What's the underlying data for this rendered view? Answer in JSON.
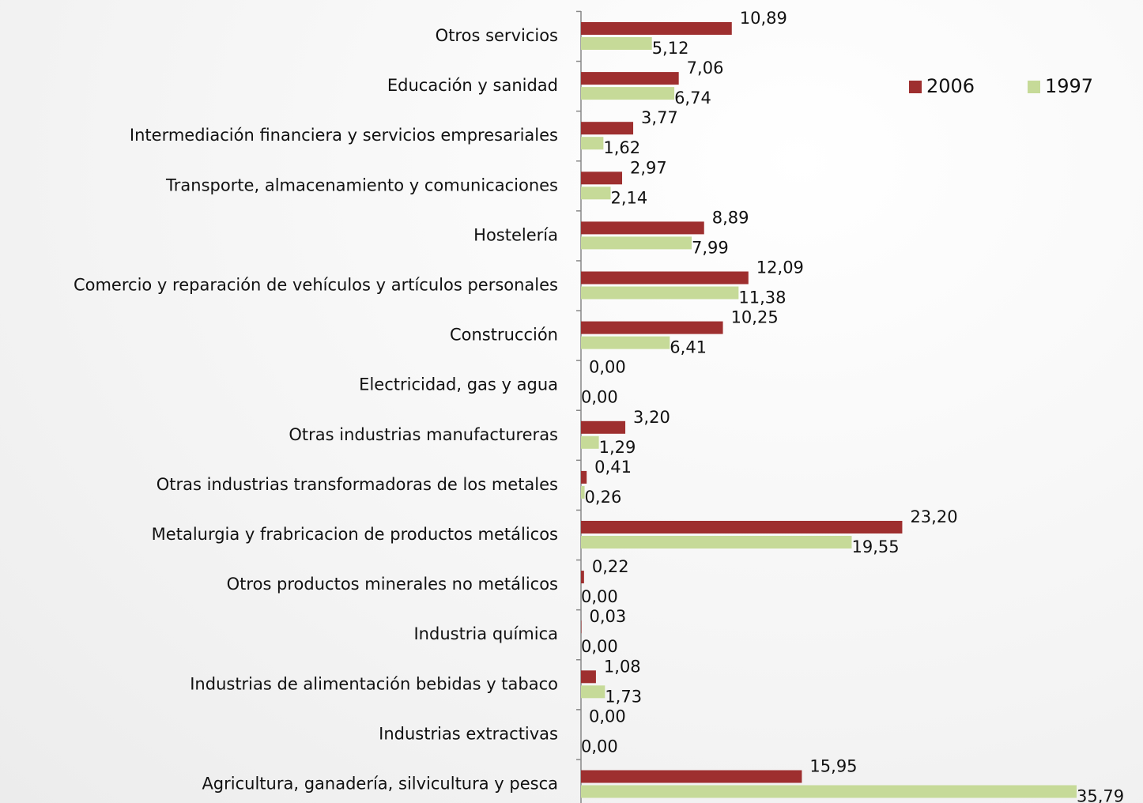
{
  "chart_data": {
    "type": "bar",
    "orientation": "horizontal",
    "categories": [
      "Otros servicios",
      "Educación y sanidad",
      "Intermediación financiera y servicios empresariales",
      "Transporte, almacenamiento y comunicaciones",
      "Hostelería",
      "Comercio y reparación de vehículos y artículos personales",
      "Construcción",
      "Electricidad, gas y agua",
      "Otras industrias manufactureras",
      "Otras industrias transformadoras de los metales",
      "Metalurgia y frabricacion de productos metálicos",
      "Otros productos minerales no metálicos",
      "Industria química",
      "Industrias de alimentación bebidas y tabaco",
      "Industrias extractivas",
      "Agricultura, ganadería, silvicultura y pesca"
    ],
    "series": [
      {
        "name": "2006",
        "color": "#9e2f2f",
        "values": [
          10.89,
          7.06,
          3.77,
          2.97,
          8.89,
          12.09,
          10.25,
          0.0,
          3.2,
          0.41,
          23.2,
          0.22,
          0.03,
          1.08,
          0.0,
          15.95
        ],
        "value_labels": [
          "10,89",
          "7,06",
          "3,77",
          "2,97",
          "8,89",
          "12,09",
          "10,25",
          "0,00",
          "3,20",
          "0,41",
          "23,20",
          "0,22",
          "0,03",
          "1,08",
          "0,00",
          "15,95"
        ]
      },
      {
        "name": "1997",
        "color": "#c6da98",
        "values": [
          5.12,
          6.74,
          1.62,
          2.14,
          7.99,
          11.38,
          6.41,
          0.0,
          1.29,
          0.26,
          19.55,
          0.0,
          0.0,
          1.73,
          0.0,
          35.79
        ],
        "value_labels": [
          "5,12",
          "6,74",
          "1,62",
          "2,14",
          "7,99",
          "11,38",
          "6,41",
          "0,00",
          "1,29",
          "0,26",
          "19,55",
          "0,00",
          "0,00",
          "1,73",
          "0,00",
          "35,79"
        ]
      }
    ],
    "legend": "top-right"
  }
}
